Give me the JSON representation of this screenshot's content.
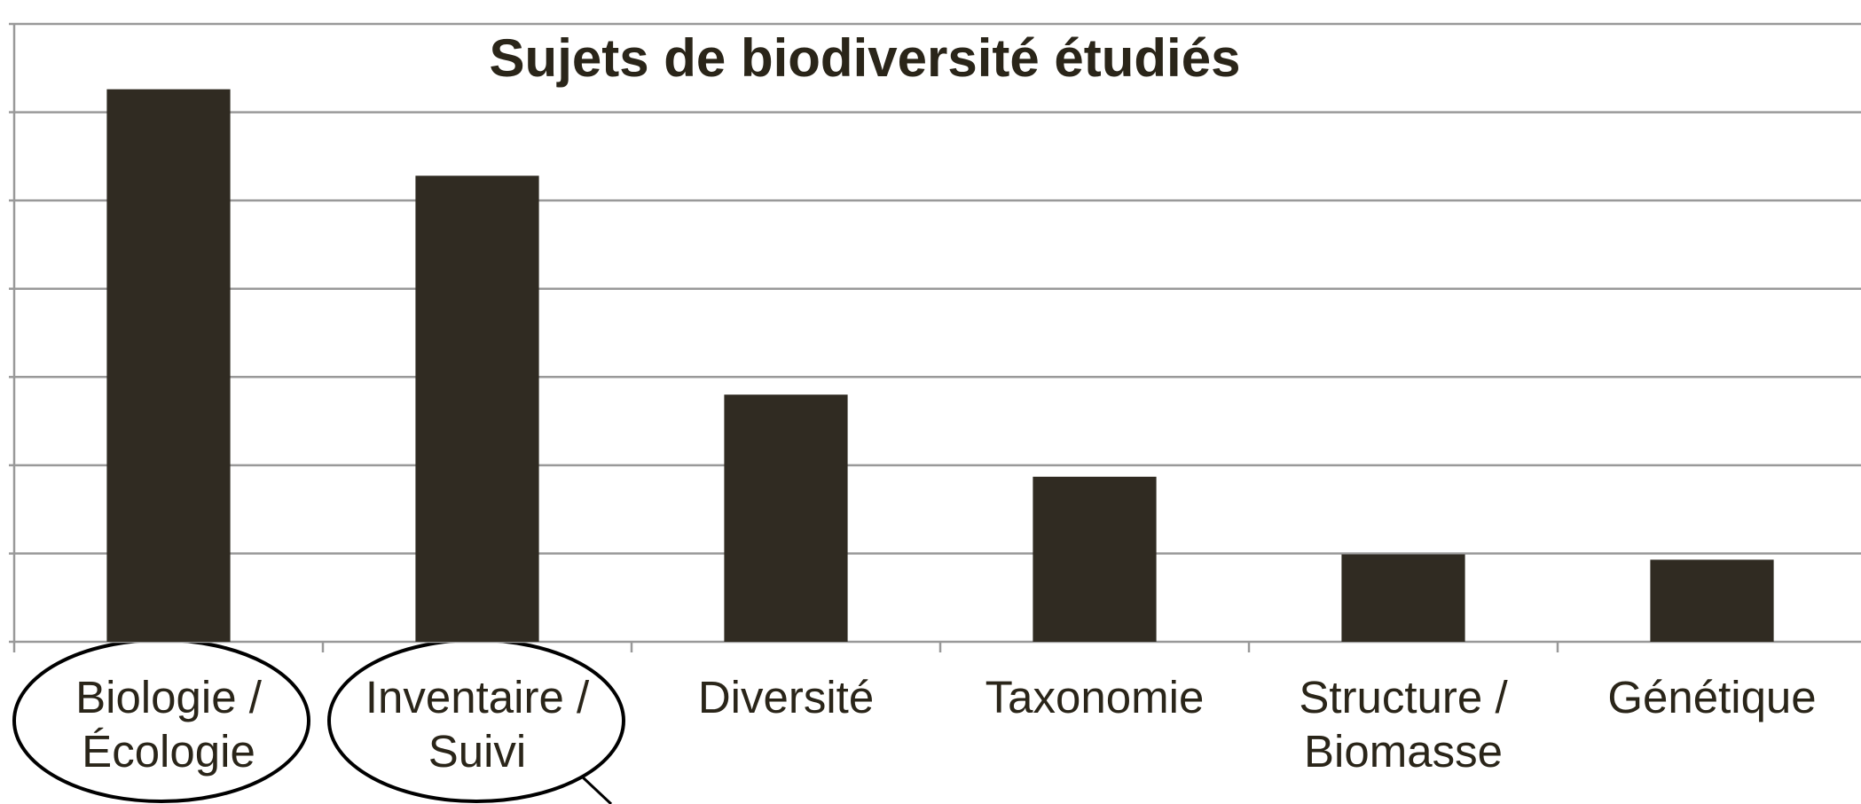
{
  "chart_data": {
    "type": "bar",
    "title": "Sujets de biodiversité étudiés",
    "categories": [
      "Biologie / Écologie",
      "Inventaire / Suivi",
      "Diversité",
      "Taxonomie",
      "Structure / Biomasse",
      "Génétique"
    ],
    "values": [
      6.26,
      5.28,
      2.8,
      1.87,
      0.99,
      0.93
    ],
    "color": "#302b22",
    "ylim": [
      0,
      7
    ],
    "yticks": [
      0,
      1,
      2,
      3,
      4,
      5,
      6,
      7
    ],
    "grid": true
  }
}
